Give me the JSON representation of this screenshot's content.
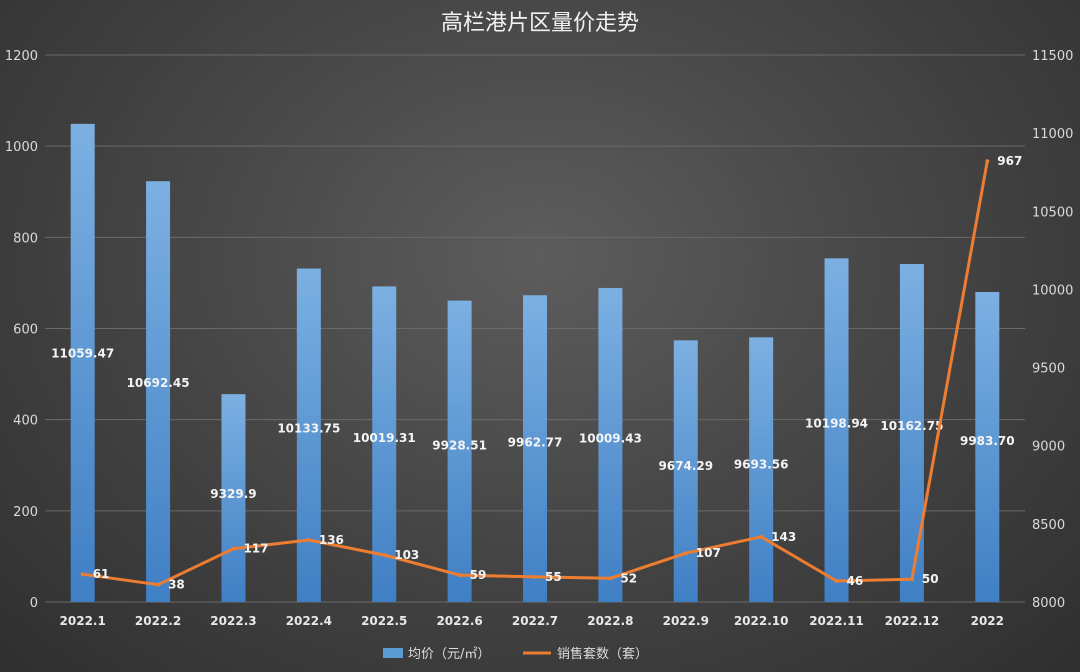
{
  "chart_data": {
    "type": "bar+line",
    "title": "高栏港片区量价走势",
    "categories": [
      "2022.1",
      "2022.2",
      "2022.3",
      "2022.4",
      "2022.5",
      "2022.6",
      "2022.7",
      "2022.8",
      "2022.9",
      "2022.10",
      "2022.11",
      "2022.12",
      "2022"
    ],
    "series": [
      {
        "name": "均价（元/㎡）",
        "type": "bar",
        "axis": "right",
        "color": "#5b9bd5",
        "values": [
          11059.47,
          10692.45,
          9329.9,
          10133.75,
          10019.31,
          9928.51,
          9962.77,
          10009.43,
          9674.29,
          9693.56,
          10198.94,
          10162.75,
          9983.7
        ],
        "labels": [
          "11059.47",
          "10692.45",
          "9329.9",
          "10133.75",
          "10019.31",
          "9928.51",
          "9962.77",
          "10009.43",
          "9674.29",
          "9693.56",
          "10198.94",
          "10162.75",
          "9983.70"
        ]
      },
      {
        "name": "销售套数（套）",
        "type": "line",
        "axis": "left",
        "color": "#ed7d31",
        "values": [
          61,
          38,
          117,
          136,
          103,
          59,
          55,
          52,
          107,
          143,
          46,
          50,
          967
        ],
        "labels": [
          "61",
          "38",
          "117",
          "136",
          "103",
          "59",
          "55",
          "52",
          "107",
          "143",
          "46",
          "50",
          "967"
        ]
      }
    ],
    "y_left": {
      "min": 0,
      "max": 1200,
      "step": 200,
      "ticks": [
        "0",
        "200",
        "400",
        "600",
        "800",
        "1000",
        "1200"
      ]
    },
    "y_right": {
      "min": 8000,
      "max": 11500,
      "step": 500,
      "ticks": [
        "8000",
        "8500",
        "9000",
        "9500",
        "10000",
        "10500",
        "11000",
        "11500"
      ]
    },
    "grid": true,
    "legend": "bottom"
  }
}
